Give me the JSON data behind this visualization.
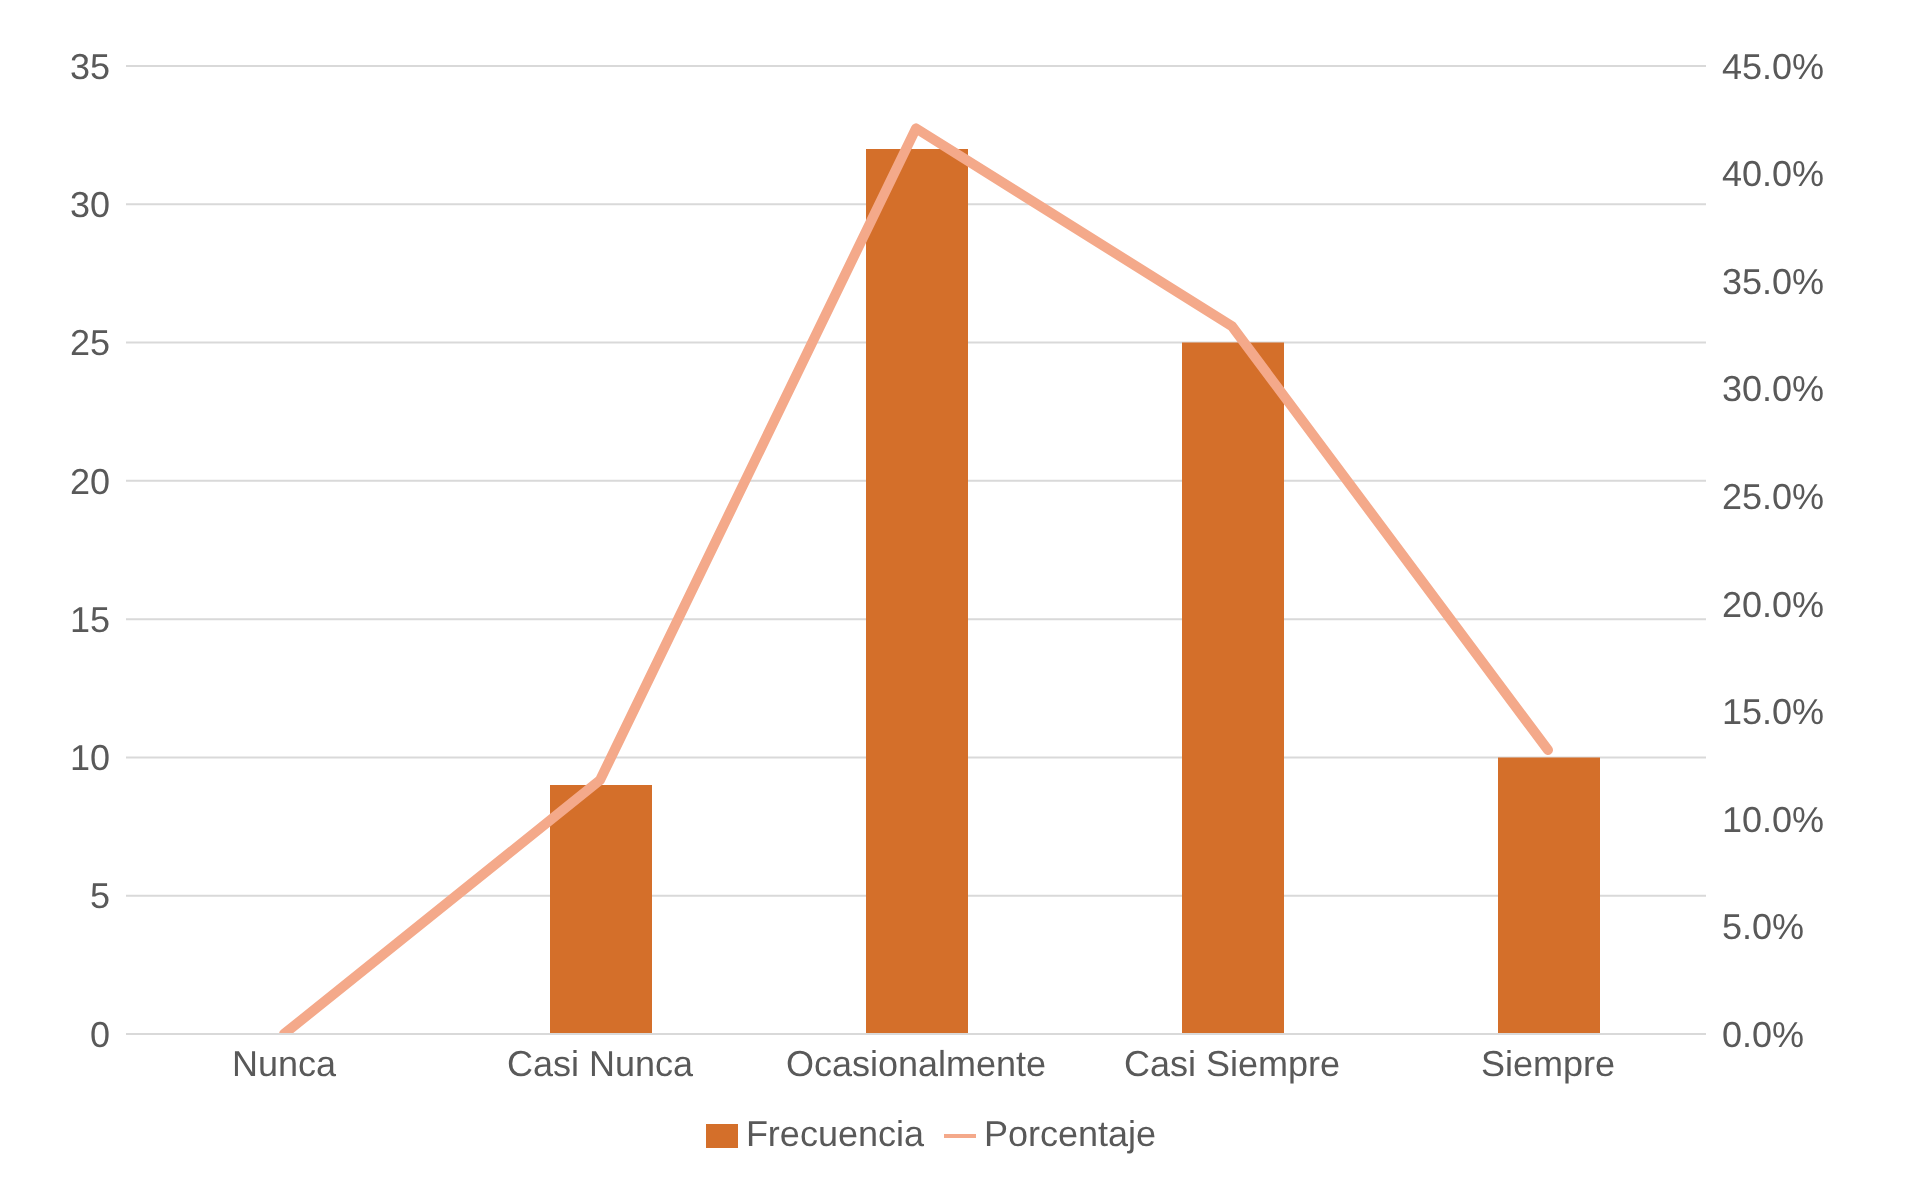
{
  "chart_data": {
    "type": "bar",
    "categories": [
      "Nunca",
      "Casi Nunca",
      "Ocasionalmente",
      "Casi Siempre",
      "Siempre"
    ],
    "series": [
      {
        "name": "Frecuencia",
        "color": "#d46f2a",
        "values": [
          0,
          9,
          32,
          25,
          10
        ]
      },
      {
        "name": "Porcentaje",
        "type": "line",
        "axis": "y2",
        "color": "#f4a98a",
        "values": [
          0,
          11.8,
          42.1,
          32.9,
          13.2
        ]
      }
    ],
    "ylim": [
      0,
      35
    ],
    "yticks": [
      0,
      5,
      10,
      15,
      20,
      25,
      30,
      35
    ],
    "y2lim": [
      0,
      45
    ],
    "y2ticks": [
      {
        "value": 0,
        "label": "0.0%"
      },
      {
        "value": 5,
        "label": "5.0%"
      },
      {
        "value": 10,
        "label": "10.0%"
      },
      {
        "value": 15,
        "label": "15.0%"
      },
      {
        "value": 20,
        "label": "20.0%"
      },
      {
        "value": 25,
        "label": "25.0%"
      },
      {
        "value": 30,
        "label": "30.0%"
      },
      {
        "value": 35,
        "label": "35.0%"
      },
      {
        "value": 40,
        "label": "40.0%"
      },
      {
        "value": 45,
        "label": "45.0%"
      }
    ],
    "grid": "y",
    "legend": "bottom",
    "marker": "none"
  }
}
